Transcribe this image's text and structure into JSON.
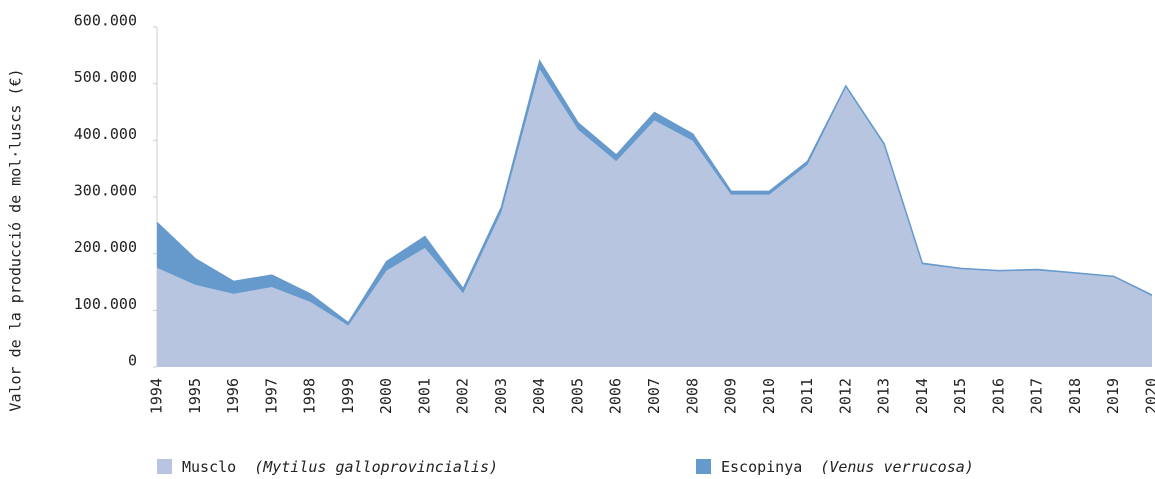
{
  "chart_data": {
    "type": "stacked_area",
    "y_label": "Valor de la producció de mol·luscs (€)",
    "categories": [
      "1994",
      "1995",
      "1996",
      "1997",
      "1998",
      "1999",
      "2000",
      "2001",
      "2002",
      "2003",
      "2004",
      "2005",
      "2006",
      "2007",
      "2008",
      "2009",
      "2010",
      "2011",
      "2012",
      "2013",
      "2014",
      "2015",
      "2016",
      "2017",
      "2018",
      "2019",
      "2020"
    ],
    "series": [
      {
        "name": "Musclo",
        "latin": "(Mytilus galloprovincialis)",
        "color": "#b8c5e0",
        "values": [
          175000,
          145000,
          129000,
          141000,
          115000,
          73000,
          170000,
          210000,
          130000,
          273000,
          525000,
          419000,
          363000,
          435000,
          399000,
          304000,
          304000,
          357000,
          493000,
          391000,
          181000,
          173000,
          169000,
          170000,
          165000,
          159000,
          125000
        ]
      },
      {
        "name": "Escopinya",
        "latin": "(Venus verrucosa)",
        "color": "#6699cc",
        "values": [
          80000,
          46000,
          22000,
          21000,
          14000,
          5000,
          16000,
          20000,
          8000,
          9000,
          15000,
          12000,
          11000,
          14000,
          12000,
          6000,
          6000,
          6000,
          3000,
          3000,
          2000,
          1000,
          1000,
          2000,
          1000,
          1000,
          2000
        ]
      }
    ],
    "ylim": [
      0,
      600000
    ],
    "yticks": [
      0,
      {
        "value": 100000,
        "label": "100.000"
      },
      {
        "value": 200000,
        "label": "200.000"
      },
      {
        "value": 300000,
        "label": "300.000"
      },
      {
        "value": 400000,
        "label": "400.000"
      },
      {
        "value": 500000,
        "label": "500.000"
      },
      {
        "value": 600000,
        "label": "600.000"
      }
    ],
    "grid": false,
    "legend": "bottom"
  }
}
